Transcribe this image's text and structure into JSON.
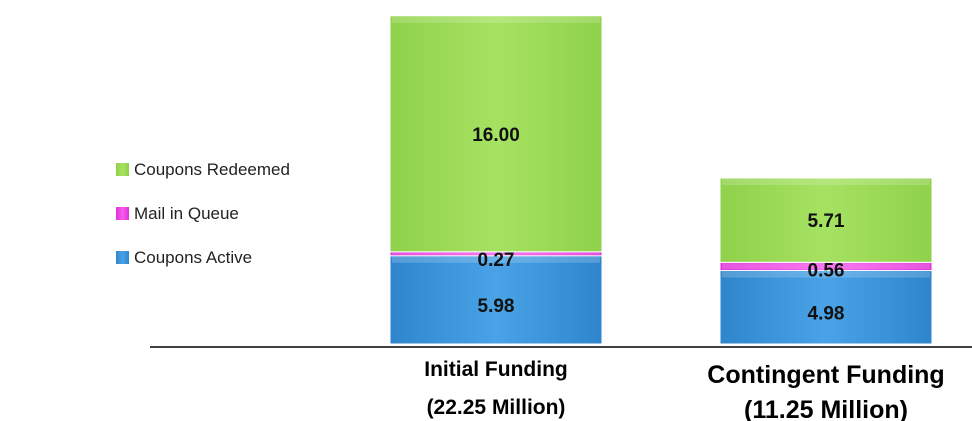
{
  "chart_data": {
    "type": "bar",
    "stacked": true,
    "categories": [
      [
        "Initial Funding",
        "(22.25 Million)"
      ],
      [
        "Contingent Funding",
        "(11.25 Million)"
      ]
    ],
    "series": [
      {
        "name": "Coupons Active",
        "values": [
          5.98,
          4.98
        ],
        "labels": [
          "5.98",
          "4.98"
        ],
        "color": "#3e96dc"
      },
      {
        "name": "Mail in Queue",
        "values": [
          0.27,
          0.56
        ],
        "labels": [
          "0.27",
          "0.56"
        ],
        "color": "#ef3fe6"
      },
      {
        "name": "Coupons Redeemed",
        "values": [
          16.0,
          5.71
        ],
        "labels": [
          "16.00",
          "5.71"
        ],
        "color": "#9bdb58"
      }
    ],
    "legend_position": "left",
    "legend_order": [
      "Coupons Redeemed",
      "Mail in Queue",
      "Coupons Active"
    ],
    "grid": false
  }
}
